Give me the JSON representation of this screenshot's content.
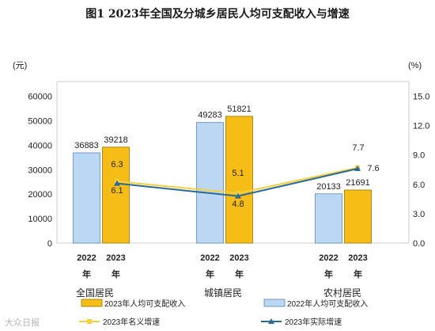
{
  "chart_data": {
    "type": "bar",
    "title": "图1 2023年全国及分城乡居民人均可支配收入与增速",
    "y_left_unit": "(元)",
    "y_right_unit": "(%)",
    "y_left_ticks": [
      0,
      10000,
      20000,
      30000,
      40000,
      50000,
      60000
    ],
    "y_right_ticks": [
      "0.0",
      "3.0",
      "6.0",
      "9.0",
      "12.0",
      "15.0"
    ],
    "ylim_left": [
      0,
      66000
    ],
    "ylim_right": [
      0,
      16.5
    ],
    "categories": [
      "全国居民",
      "城镇居民",
      "农村居民"
    ],
    "year_labels": [
      "2022",
      "2023"
    ],
    "year_suffix": "年",
    "series": [
      {
        "name": "2022年人均可支配收入",
        "kind": "bar",
        "color": "#bcd7f4",
        "values": [
          36883,
          49283,
          20133
        ]
      },
      {
        "name": "2023年人均可支配收入",
        "kind": "bar",
        "color": "#f6bd16",
        "values": [
          39218,
          51821,
          21691
        ]
      },
      {
        "name": "2023年名义增速",
        "kind": "line",
        "axis": "right",
        "color": "#f3d03f",
        "values": [
          6.3,
          5.1,
          7.7
        ]
      },
      {
        "name": "2023年实际增速",
        "kind": "line",
        "axis": "right",
        "color": "#2c6a94",
        "values": [
          6.1,
          4.8,
          7.6
        ]
      }
    ],
    "grid": false,
    "legend_position": "bottom"
  },
  "watermark": "大众日报"
}
